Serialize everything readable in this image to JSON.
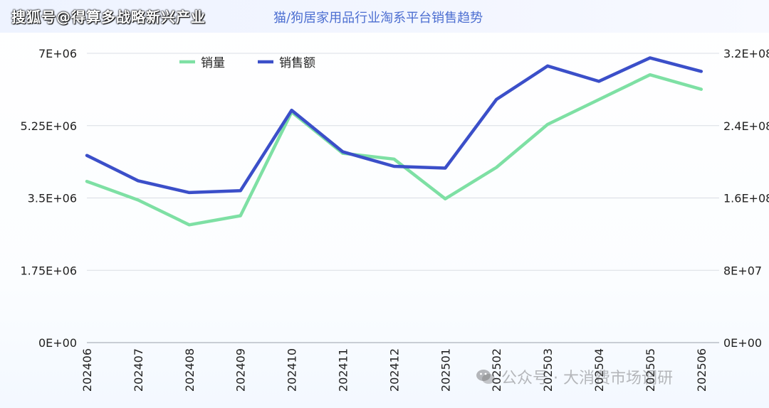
{
  "header": {
    "watermark": "搜狐号@得算多战略新兴产业",
    "title": "猫/狗居家用品行业淘系平台销售趋势"
  },
  "footer": {
    "watermark": "公众号 · 大消费市场调研",
    "icon": "wechat-icon"
  },
  "colors": {
    "volume": "#7ee0a4",
    "sales": "#3b4fc9",
    "grid": "#d9dde4",
    "axis_text": "#222222"
  },
  "chart_data": {
    "type": "line",
    "title": "猫/狗居家用品行业淘系平台销售趋势",
    "categories": [
      "202406",
      "202407",
      "202408",
      "202409",
      "202410",
      "202411",
      "202412",
      "202501",
      "202502",
      "202503",
      "202504",
      "202505",
      "202506"
    ],
    "series": [
      {
        "name": "销量",
        "axis": "left",
        "values": [
          3900000,
          3450000,
          2850000,
          3070000,
          5580000,
          4580000,
          4440000,
          3480000,
          4240000,
          5280000,
          5880000,
          6480000,
          6130000
        ]
      },
      {
        "name": "销售额",
        "axis": "right",
        "values": [
          207000000,
          179000000,
          166000000,
          168000000,
          257000000,
          211000000,
          195000000,
          193000000,
          269000000,
          306000000,
          289000000,
          315000000,
          300000000
        ]
      }
    ],
    "y_left": {
      "ylim": [
        0,
        7000000
      ],
      "ticks": [
        0,
        1750000,
        3500000,
        5250000,
        7000000
      ],
      "tick_labels": [
        "0E+00",
        "1.75E+06",
        "3.5E+06",
        "5.25E+06",
        "7E+06"
      ]
    },
    "y_right": {
      "ylim": [
        0,
        320000000
      ],
      "ticks": [
        0,
        80000000,
        160000000,
        240000000,
        320000000
      ],
      "tick_labels": [
        "0E+00",
        "8E+07",
        "1.6E+08",
        "2.4E+08",
        "3.2E+08"
      ]
    },
    "legend_position": "top-left",
    "grid": true
  }
}
